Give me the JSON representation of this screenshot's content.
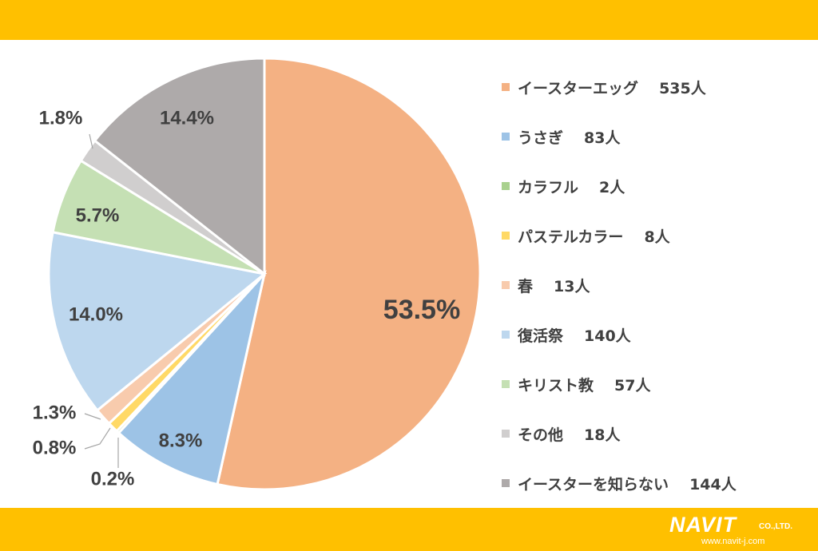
{
  "colors": {
    "band": "#ffc000",
    "egg": "#f4b183",
    "rabbit": "#9dc3e6",
    "colorful": "#a9d18e",
    "pastel": "#ffd966",
    "spring": "#f8cbad",
    "easter_fest": "#bdd7ee",
    "christian": "#c5e0b4",
    "other": "#d0cece",
    "unknown": "#aeaaaa"
  },
  "chart_data": {
    "type": "pie",
    "start_angle": "12 o'clock",
    "direction": "clockwise",
    "legend_position": "right",
    "slices": [
      {
        "label": "イースターエッグ",
        "count": "535人",
        "value": 53.5,
        "pct_label": "53.5%",
        "color_key": "egg"
      },
      {
        "label": "うさぎ",
        "count": "83人",
        "value": 8.3,
        "pct_label": "8.3%",
        "color_key": "rabbit"
      },
      {
        "label": "カラフル",
        "count": "2人",
        "value": 0.2,
        "pct_label": "0.2%",
        "color_key": "colorful"
      },
      {
        "label": "パステルカラー",
        "count": "8人",
        "value": 0.8,
        "pct_label": "0.8%",
        "color_key": "pastel"
      },
      {
        "label": "春",
        "count": "13人",
        "value": 1.3,
        "pct_label": "1.3%",
        "color_key": "spring"
      },
      {
        "label": "復活祭",
        "count": "140人",
        "value": 14.0,
        "pct_label": "14.0%",
        "color_key": "easter_fest"
      },
      {
        "label": "キリスト教",
        "count": "57人",
        "value": 5.7,
        "pct_label": "5.7%",
        "color_key": "christian"
      },
      {
        "label": "その他",
        "count": "18人",
        "value": 1.8,
        "pct_label": "1.8%",
        "color_key": "other"
      },
      {
        "label": "イースターを知らない",
        "count": "144人",
        "value": 14.4,
        "pct_label": "14.4%",
        "color_key": "unknown"
      }
    ]
  },
  "logo": {
    "main": "NAVIT",
    "suffix": "CO.,LTD.",
    "url": "www.navit-j.com"
  }
}
